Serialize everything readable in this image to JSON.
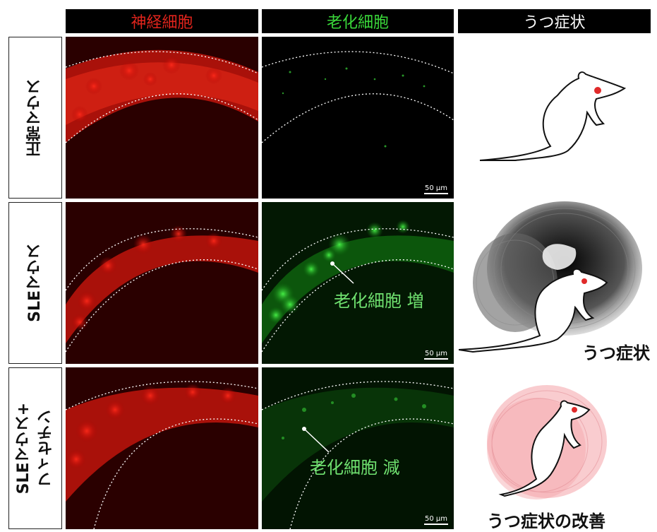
{
  "columns": [
    {
      "label": "神経細胞",
      "color": "#e0241c"
    },
    {
      "label": "老化細胞",
      "color": "#3ad83a"
    },
    {
      "label": "うつ症状",
      "color": "#ffffff"
    }
  ],
  "rows": [
    {
      "label": "正常マウス"
    },
    {
      "label": "SLEマウス"
    },
    {
      "label": "SLEマウス+\nフィセチン"
    }
  ],
  "scale_bar": "50 μm",
  "annotations": {
    "increase": "老化細胞 増",
    "decrease": "老化細胞 減"
  },
  "captions": {
    "depression": "うつ症状",
    "improvement": "うつ症状の改善"
  },
  "colors": {
    "neuron_red": "#e0241c",
    "senescent_green": "#3ad83a",
    "panel_bg": "#000000",
    "calm_pink": "#f4a3a8",
    "gloom_gray": "#333333"
  }
}
